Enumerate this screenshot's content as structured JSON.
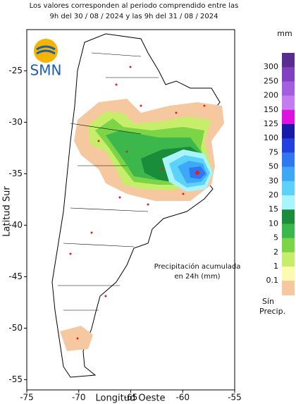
{
  "header": {
    "lines": [
      "Los valores corresponden al periodo comprendido entre las",
      "9h del 30 / 08 / 2024  y las 9h del 31 / 08 / 2024"
    ]
  },
  "logo": "SMN",
  "map": {
    "xlabel": "Longitud Oeste",
    "ylabel": "Latitud Sur",
    "xlim": [
      -75,
      -55
    ],
    "ylim": [
      -56,
      -21
    ],
    "xticks": [
      -75,
      -70,
      -65,
      -60,
      -55
    ],
    "yticks": [
      -25,
      -30,
      -35,
      -40,
      -45,
      -50,
      -55
    ]
  },
  "annotation": [
    "Precipitación acumulada",
    "en 24h (mm)"
  ],
  "legend": {
    "unit": "mm",
    "labels": [
      "300",
      "250",
      "200",
      "150",
      "125",
      "100",
      "75",
      "50",
      "30",
      "20",
      "15",
      "10",
      "5",
      "2",
      "1",
      "0.1"
    ],
    "colors": [
      "#5b2c8f",
      "#8040c0",
      "#a45ee0",
      "#c47cf0",
      "#e010e0",
      "#1a1aa8",
      "#2540e0",
      "#2f78f0",
      "#3ca8f6",
      "#5cd2fa",
      "#a8f4ff",
      "#1a8c3a",
      "#3cb74c",
      "#7cd447",
      "#c7ee6a",
      "#fdfbb0",
      "#f6c8a0"
    ],
    "no_precip": [
      "Sín",
      "Precip."
    ]
  }
}
